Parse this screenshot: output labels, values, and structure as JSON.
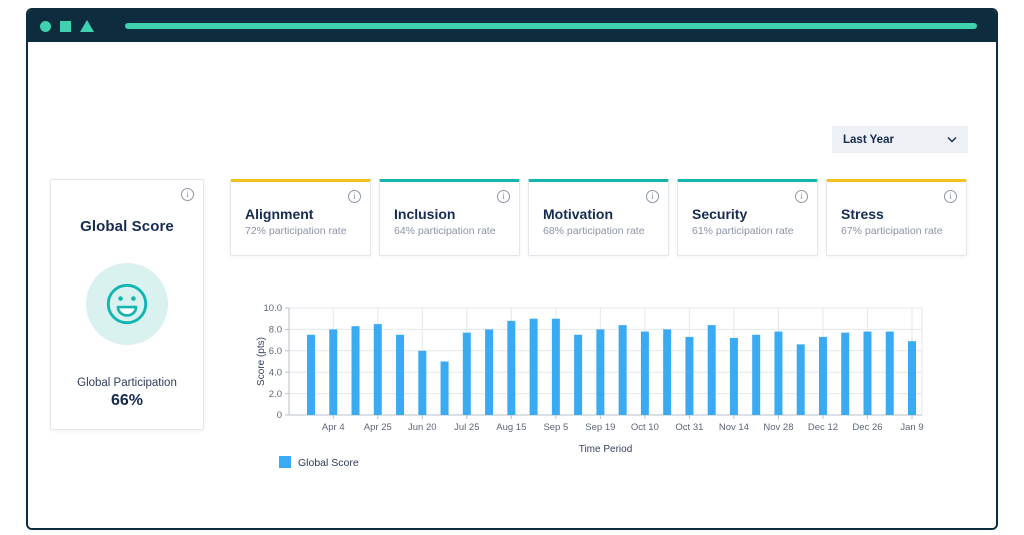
{
  "window": {
    "controls": [
      "circle",
      "square",
      "triangle"
    ],
    "accent_color": "#3fd2b0",
    "frame_color": "#0d2c3e"
  },
  "filter": {
    "label": "Last Year"
  },
  "global_card": {
    "title": "Global Score",
    "participation_label": "Global Participation",
    "participation_value": "66%",
    "mood_icon": "smiley-happy",
    "icon_stroke": "#13b5b1",
    "icon_bg": "#d9f1ef"
  },
  "metric_cards": [
    {
      "title": "Alignment",
      "subtitle": "72% participation rate",
      "accent_color": "#f2c21c"
    },
    {
      "title": "Inclusion",
      "subtitle": "64% participation rate",
      "accent_color": "#13b5ae"
    },
    {
      "title": "Motivation",
      "subtitle": "68% participation rate",
      "accent_color": "#13b5ae"
    },
    {
      "title": "Security",
      "subtitle": "61% participation rate",
      "accent_color": "#13b5ae"
    },
    {
      "title": "Stress",
      "subtitle": "67% participation rate",
      "accent_color": "#f2c21c"
    }
  ],
  "chart_data": {
    "type": "bar",
    "series_name": "Global Score",
    "title": "",
    "xlabel": "Time Period",
    "ylabel": "Score (pts)",
    "ylim": [
      0,
      10
    ],
    "ytick_labels": [
      "0",
      "2.0",
      "4.0",
      "6.0",
      "8.0",
      "10.0"
    ],
    "grid": true,
    "legend_position": "bottom-left",
    "x_labels": [
      "",
      "Apr 4",
      "",
      "Apr 25",
      "",
      "Jun 20",
      "",
      "Jul 25",
      "",
      "Aug 15",
      "",
      "Sep 5",
      "",
      "Sep 19",
      "",
      "Oct 10",
      "",
      "Oct 31",
      "",
      "Nov 14",
      "",
      "Nov 28",
      "",
      "Dec 12",
      "",
      "Dec 26",
      "",
      "Jan 9"
    ],
    "values": [
      7.5,
      8.0,
      8.3,
      8.5,
      7.5,
      6.0,
      5.0,
      7.7,
      8.0,
      8.8,
      9.0,
      9.0,
      7.5,
      8.0,
      8.4,
      7.8,
      8.0,
      7.3,
      8.4,
      7.2,
      7.5,
      7.8,
      6.6,
      7.3,
      7.7,
      7.8,
      7.8,
      6.9
    ],
    "colors": {
      "bar": "#3aabf3",
      "grid": "#e4e7ec",
      "axis": "#b9c0cb",
      "tick_text": "#5d6678",
      "axis_label_text": "#36425f",
      "legend_text": "#2c3a57"
    }
  }
}
